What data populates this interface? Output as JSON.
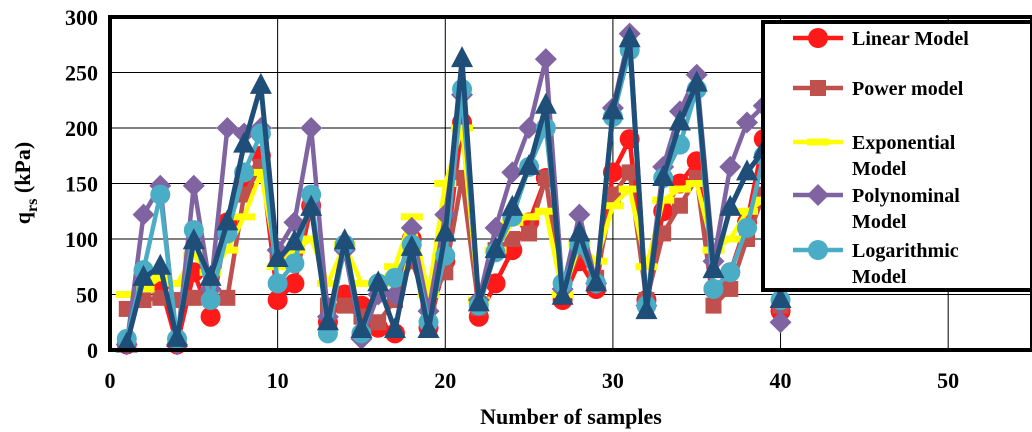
{
  "chart_data": {
    "type": "line",
    "title": "",
    "xlabel": "Number of samples",
    "ylabel_main": "q",
    "ylabel_sub": "rs",
    "ylabel_unit": " (kPa)",
    "xlim": [
      0,
      55
    ],
    "ylim": [
      0,
      300
    ],
    "xticks": [
      0,
      10,
      20,
      30,
      40,
      50
    ],
    "yticks": [
      0,
      50,
      100,
      150,
      200,
      250,
      300
    ],
    "grid": true,
    "legend_position": "top-right",
    "x": [
      1,
      2,
      3,
      4,
      5,
      6,
      7,
      8,
      9,
      10,
      11,
      12,
      13,
      14,
      15,
      16,
      17,
      18,
      19,
      20,
      21,
      22,
      23,
      24,
      25,
      26,
      27,
      28,
      29,
      30,
      31,
      32,
      33,
      34,
      35,
      36,
      37,
      38,
      39,
      40
    ],
    "series": [
      {
        "name": "Linear Model",
        "color": "#ff1a1a",
        "marker": "circle",
        "values": [
          5,
          65,
          60,
          5,
          70,
          30,
          115,
          150,
          175,
          45,
          60,
          130,
          25,
          50,
          40,
          20,
          15,
          100,
          20,
          80,
          205,
          30,
          60,
          90,
          115,
          155,
          45,
          80,
          55,
          160,
          190,
          45,
          125,
          150,
          170,
          55,
          70,
          115,
          190,
          35
        ]
      },
      {
        "name": "Power model",
        "color": "#c0504d",
        "marker": "square",
        "values": [
          37,
          45,
          47,
          45,
          47,
          47,
          47,
          140,
          165,
          85,
          80,
          130,
          40,
          40,
          30,
          25,
          45,
          80,
          40,
          70,
          155,
          38,
          90,
          100,
          105,
          155,
          50,
          90,
          65,
          140,
          160,
          45,
          105,
          130,
          155,
          40,
          55,
          100,
          140,
          40
        ]
      },
      {
        "name": "Exponential Model",
        "color": "#ffff00",
        "marker": "dash",
        "values": [
          50,
          55,
          65,
          60,
          85,
          70,
          90,
          120,
          160,
          75,
          90,
          100,
          60,
          95,
          60,
          60,
          75,
          120,
          50,
          150,
          200,
          45,
          90,
          115,
          120,
          125,
          50,
          95,
          80,
          130,
          145,
          75,
          135,
          145,
          150,
          90,
          100,
          125,
          135,
          60
        ]
      },
      {
        "name": "Polynominal Model",
        "color": "#8064a2",
        "marker": "diamond",
        "values": [
          5,
          122,
          148,
          5,
          148,
          55,
          200,
          195,
          200,
          90,
          115,
          200,
          30,
          90,
          10,
          50,
          50,
          110,
          35,
          122,
          230,
          45,
          110,
          160,
          200,
          262,
          55,
          122,
          60,
          218,
          285,
          40,
          165,
          215,
          248,
          80,
          165,
          205,
          220,
          25
        ]
      },
      {
        "name": "Logarithmic Model",
        "color": "#4bacc6",
        "marker": "circle",
        "values": [
          10,
          72,
          140,
          10,
          108,
          45,
          105,
          160,
          195,
          60,
          78,
          140,
          15,
          95,
          15,
          60,
          65,
          95,
          25,
          85,
          235,
          40,
          88,
          120,
          165,
          200,
          60,
          95,
          60,
          210,
          270,
          40,
          155,
          185,
          235,
          55,
          70,
          110,
          175,
          45
        ]
      },
      {
        "name": "",
        "color": "#1f4e79",
        "marker": "triangle",
        "values": [
          5,
          65,
          75,
          10,
          98,
          65,
          115,
          185,
          238,
          82,
          97,
          128,
          25,
          98,
          18,
          60,
          18,
          92,
          18,
          105,
          262,
          42,
          90,
          128,
          165,
          220,
          48,
          105,
          60,
          215,
          280,
          35,
          155,
          205,
          240,
          72,
          128,
          160,
          180,
          45
        ]
      }
    ],
    "legend_lines": [
      [
        "Linear Model"
      ],
      [
        "Power model"
      ],
      [
        "Exponential",
        "Model"
      ],
      [
        "Polynominal",
        "Model"
      ],
      [
        "Logarithmic",
        "Model"
      ]
    ]
  }
}
